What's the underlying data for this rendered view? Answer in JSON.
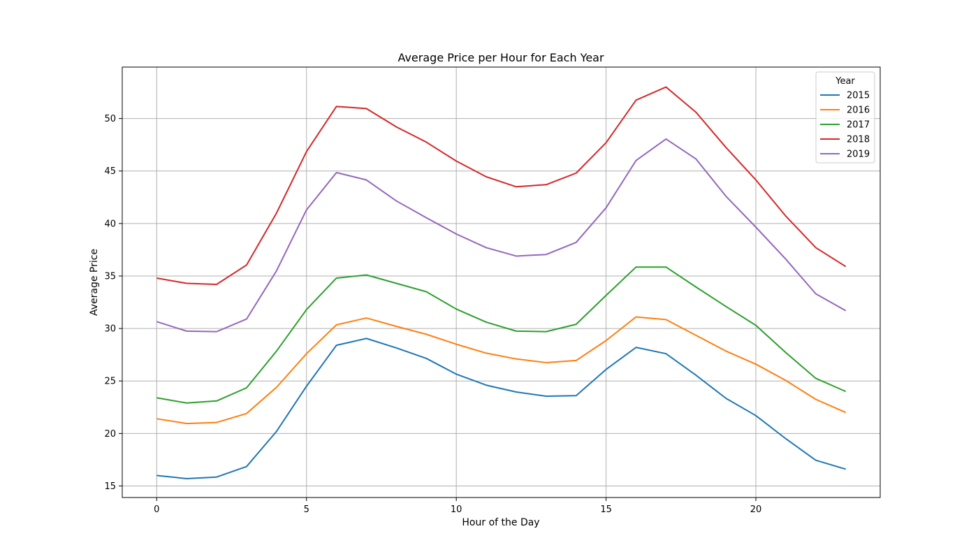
{
  "chart_data": {
    "type": "line",
    "title": "Average Price per Hour for Each Year",
    "xlabel": "Hour of the Day",
    "ylabel": "Average Price",
    "x": [
      0,
      1,
      2,
      3,
      4,
      5,
      6,
      7,
      8,
      9,
      10,
      11,
      12,
      13,
      14,
      15,
      16,
      17,
      18,
      19,
      20,
      21,
      22,
      23
    ],
    "xlim": [
      -1.15,
      24.15
    ],
    "ylim": [
      13.9,
      54.9
    ],
    "xticks": [
      0,
      5,
      10,
      15,
      20
    ],
    "yticks": [
      15,
      20,
      25,
      30,
      35,
      40,
      45,
      50
    ],
    "grid": true,
    "legend": {
      "title": "Year",
      "placement": "top-right"
    },
    "series": [
      {
        "name": "2015",
        "color": "#1f77b4",
        "values": [
          16.0,
          15.7,
          15.85,
          16.85,
          20.2,
          24.5,
          28.4,
          29.05,
          28.15,
          27.15,
          25.65,
          24.6,
          23.95,
          23.55,
          23.6,
          26.1,
          28.2,
          27.6,
          25.55,
          23.35,
          21.7,
          19.5,
          17.45,
          16.6
        ]
      },
      {
        "name": "2016",
        "color": "#ff7f0e",
        "values": [
          21.4,
          20.95,
          21.05,
          21.9,
          24.4,
          27.6,
          30.35,
          31.0,
          30.2,
          29.45,
          28.5,
          27.65,
          27.1,
          26.75,
          26.95,
          28.85,
          31.1,
          30.85,
          29.35,
          27.85,
          26.6,
          25.05,
          23.25,
          22.0
        ]
      },
      {
        "name": "2017",
        "color": "#2ca02c",
        "values": [
          23.4,
          22.9,
          23.1,
          24.35,
          27.85,
          31.8,
          34.8,
          35.1,
          34.3,
          33.5,
          31.85,
          30.6,
          29.75,
          29.7,
          30.4,
          33.15,
          35.85,
          35.85,
          33.95,
          32.1,
          30.3,
          27.7,
          25.25,
          24.0
        ]
      },
      {
        "name": "2018",
        "color": "#d62728",
        "values": [
          34.8,
          34.3,
          34.2,
          36.05,
          41.0,
          46.85,
          51.15,
          50.95,
          49.2,
          47.75,
          45.95,
          44.45,
          43.5,
          43.7,
          44.8,
          47.7,
          51.75,
          53.0,
          50.6,
          47.25,
          44.15,
          40.7,
          37.7,
          35.9
        ]
      },
      {
        "name": "2019",
        "color": "#9467bd",
        "values": [
          30.65,
          29.75,
          29.7,
          30.9,
          35.5,
          41.3,
          44.85,
          44.15,
          42.15,
          40.55,
          39.0,
          37.7,
          36.9,
          37.05,
          38.2,
          41.5,
          46.0,
          48.05,
          46.15,
          42.6,
          39.65,
          36.6,
          33.3,
          31.7
        ]
      }
    ]
  }
}
